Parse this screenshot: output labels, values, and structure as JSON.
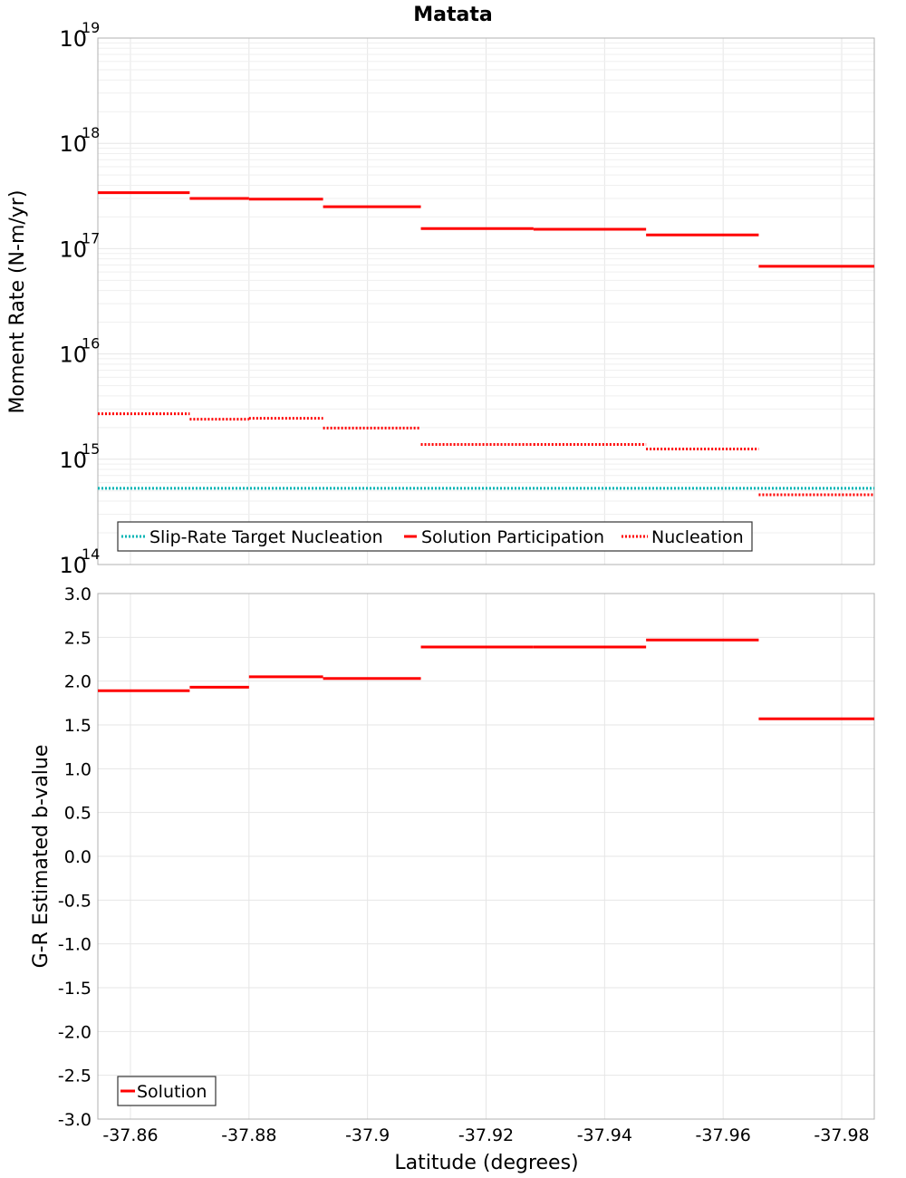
{
  "title": "Matata",
  "colors": {
    "participation": "#ff0000",
    "nucleation": "#ff0000",
    "target": "#00b4b4"
  },
  "chart_data": [
    {
      "type": "line",
      "scale": "log",
      "ylabel": "Moment Rate (N-m/yr)",
      "ylim": [
        100000000000000.0,
        1e+19
      ],
      "y_ticks": [
        {
          "base": "10",
          "exp": "14",
          "value": 100000000000000.0
        },
        {
          "base": "10",
          "exp": "15",
          "value": 1000000000000000.0
        },
        {
          "base": "10",
          "exp": "16",
          "value": 1e+16
        },
        {
          "base": "10",
          "exp": "17",
          "value": 1e+17
        },
        {
          "base": "10",
          "exp": "18",
          "value": 1e+18
        },
        {
          "base": "10",
          "exp": "19",
          "value": 1e+19
        }
      ],
      "series": [
        {
          "name": "Slip-Rate Target Nucleation",
          "style": "dotted",
          "segments": [
            {
              "x0": -37.8545,
              "x1": -37.9855,
              "y": 530000000000000.0
            }
          ]
        },
        {
          "name": "Solution Participation",
          "style": "solid",
          "segments": [
            {
              "x0": -37.8545,
              "x1": -37.87,
              "y": 3.4e+17
            },
            {
              "x0": -37.87,
              "x1": -37.88,
              "y": 3e+17
            },
            {
              "x0": -37.88,
              "x1": -37.8925,
              "y": 2.95e+17
            },
            {
              "x0": -37.8925,
              "x1": -37.909,
              "y": 2.5e+17
            },
            {
              "x0": -37.909,
              "x1": -37.928,
              "y": 1.55e+17
            },
            {
              "x0": -37.928,
              "x1": -37.947,
              "y": 1.53e+17
            },
            {
              "x0": -37.947,
              "x1": -37.966,
              "y": 1.35e+17
            },
            {
              "x0": -37.966,
              "x1": -37.9855,
              "y": 6.8e+16
            }
          ]
        },
        {
          "name": "Nucleation",
          "style": "dotted",
          "segments": [
            {
              "x0": -37.8545,
              "x1": -37.87,
              "y": 2700000000000000.0
            },
            {
              "x0": -37.87,
              "x1": -37.88,
              "y": 2400000000000000.0
            },
            {
              "x0": -37.88,
              "x1": -37.8925,
              "y": 2450000000000000.0
            },
            {
              "x0": -37.8925,
              "x1": -37.909,
              "y": 1980000000000000.0
            },
            {
              "x0": -37.909,
              "x1": -37.928,
              "y": 1380000000000000.0
            },
            {
              "x0": -37.928,
              "x1": -37.947,
              "y": 1380000000000000.0
            },
            {
              "x0": -37.947,
              "x1": -37.966,
              "y": 1250000000000000.0
            },
            {
              "x0": -37.966,
              "x1": -37.9855,
              "y": 460000000000000.0
            }
          ]
        }
      ],
      "legend": [
        "Slip-Rate Target Nucleation",
        "Solution Participation",
        "Nucleation"
      ],
      "legend_position": "bottom-left"
    },
    {
      "type": "line",
      "scale": "linear",
      "xlabel": "Latitude (degrees)",
      "ylabel": "G-R Estimated b-value",
      "xlim": [
        -37.8545,
        -37.9855
      ],
      "ylim": [
        -3.0,
        3.0
      ],
      "x_ticks": [
        {
          "label": "-37.86",
          "value": -37.86
        },
        {
          "label": "-37.88",
          "value": -37.88
        },
        {
          "label": "-37.9",
          "value": -37.9
        },
        {
          "label": "-37.92",
          "value": -37.92
        },
        {
          "label": "-37.94",
          "value": -37.94
        },
        {
          "label": "-37.96",
          "value": -37.96
        },
        {
          "label": "-37.98",
          "value": -37.98
        }
      ],
      "y_ticks": [
        {
          "label": "3.0",
          "value": 3.0
        },
        {
          "label": "2.5",
          "value": 2.5
        },
        {
          "label": "2.0",
          "value": 2.0
        },
        {
          "label": "1.5",
          "value": 1.5
        },
        {
          "label": "1.0",
          "value": 1.0
        },
        {
          "label": "0.5",
          "value": 0.5
        },
        {
          "label": "0.0",
          "value": 0.0
        },
        {
          "label": "-0.5",
          "value": -0.5
        },
        {
          "label": "-1.0",
          "value": -1.0
        },
        {
          "label": "-1.5",
          "value": -1.5
        },
        {
          "label": "-2.0",
          "value": -2.0
        },
        {
          "label": "-2.5",
          "value": -2.5
        },
        {
          "label": "-3.0",
          "value": -3.0
        }
      ],
      "series": [
        {
          "name": "Solution",
          "style": "solid",
          "segments": [
            {
              "x0": -37.8545,
              "x1": -37.87,
              "y": 1.89
            },
            {
              "x0": -37.87,
              "x1": -37.88,
              "y": 1.93
            },
            {
              "x0": -37.88,
              "x1": -37.8925,
              "y": 2.05
            },
            {
              "x0": -37.8925,
              "x1": -37.909,
              "y": 2.03
            },
            {
              "x0": -37.909,
              "x1": -37.928,
              "y": 2.39
            },
            {
              "x0": -37.928,
              "x1": -37.947,
              "y": 2.39
            },
            {
              "x0": -37.947,
              "x1": -37.966,
              "y": 2.47
            },
            {
              "x0": -37.966,
              "x1": -37.9855,
              "y": 1.57
            }
          ]
        }
      ],
      "legend": [
        "Solution"
      ],
      "legend_position": "bottom-left"
    }
  ]
}
